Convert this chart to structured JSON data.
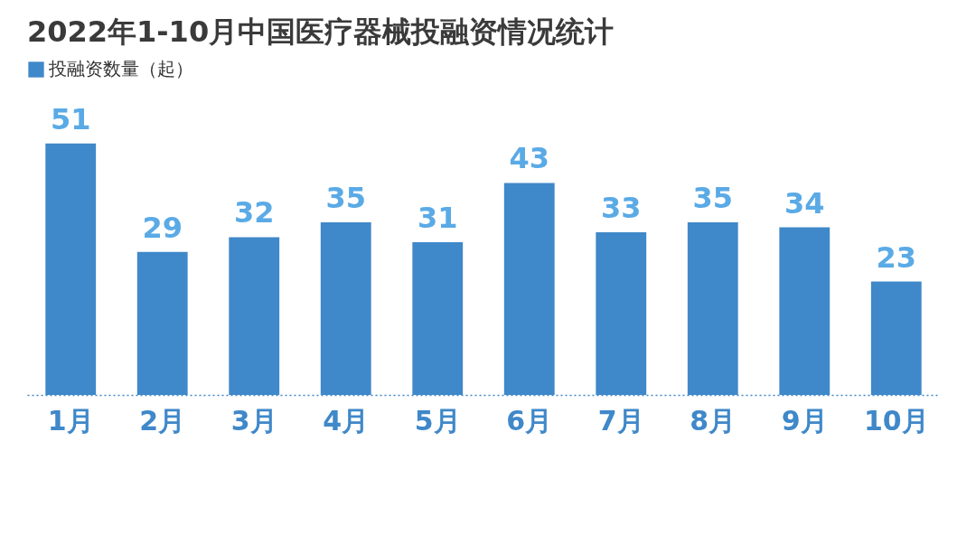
{
  "chart_data": {
    "type": "bar",
    "title": "2022年1-10月中国医疗器械投融资情况统计",
    "categories": [
      "1月",
      "2月",
      "3月",
      "4月",
      "5月",
      "6月",
      "7月",
      "8月",
      "9月",
      "10月"
    ],
    "series": [
      {
        "name": "投融资数量（起）",
        "color": "#3f88c9",
        "values": [
          51,
          29,
          32,
          35,
          31,
          43,
          33,
          35,
          34,
          23
        ]
      }
    ],
    "data_labels": true,
    "legend": "top left"
  }
}
